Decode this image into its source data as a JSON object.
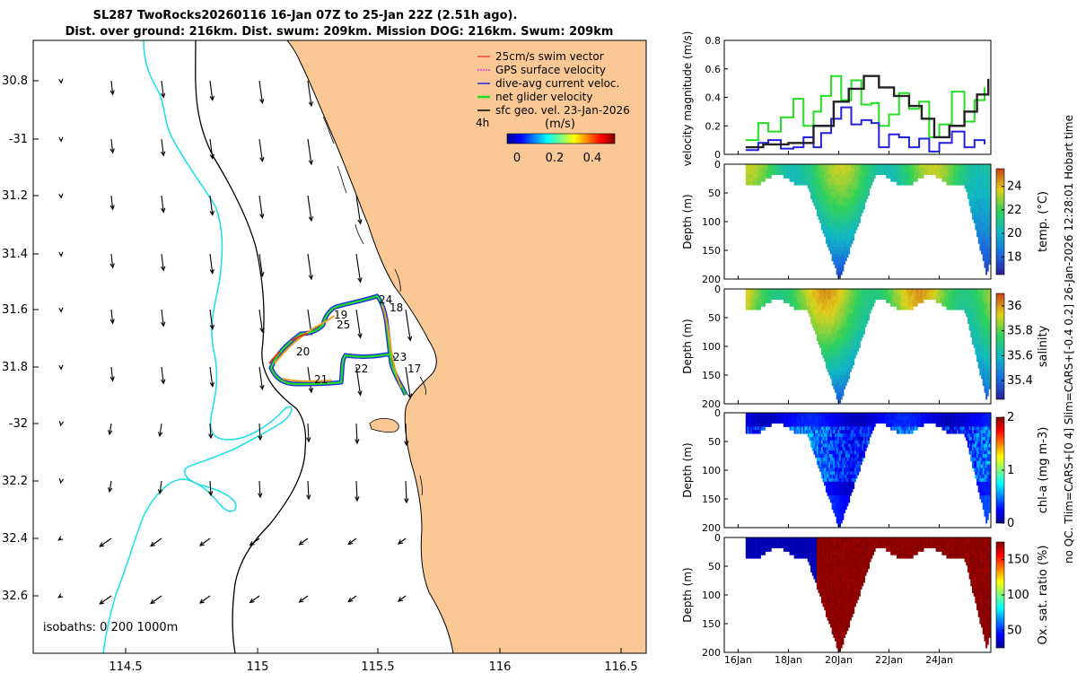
{
  "title_line1": "SL287 TwoRocks20260116 16-Jan 07Z to 25-Jan 22Z (2.51h ago).",
  "title_line2": "Dist. over ground: 216km. Dist. swum: 209km. Mission DOG: 216km. Swum: 209km",
  "side_note": "no QC. Tlim=CARS+[0 4] Slim=CARS+[-0.4 0.2] 26-Jan-2026 12:28:01 Hobart time",
  "map": {
    "lon_ticks": [
      "114.5",
      "115",
      "115.5",
      "116",
      "116.5"
    ],
    "lat_ticks": [
      "30.8",
      "-31",
      "31.2",
      "31.4",
      "31.6",
      "31.8",
      "-32",
      "32.2",
      "32.4",
      "32.6"
    ],
    "legend": [
      {
        "label": "25cm/s swim vector",
        "color": "#e0301e"
      },
      {
        "label": "GPS surface velocity",
        "color": "#e020e0"
      },
      {
        "label": "dive-avg current veloc.",
        "color": "#2222dd"
      },
      {
        "label": "net glider velocity",
        "color": "#22dd22"
      },
      {
        "label": "sfc geo. vel. 23-Jan-2026",
        "color": "#000000"
      }
    ],
    "interval_label": "4h",
    "colorbar_title": "(m/s)",
    "colorbar_ticks": [
      "0",
      "0.2",
      "0.4"
    ],
    "isobaths_label": "isobaths: 0   200  1000m",
    "day_labels": [
      "24",
      "18",
      "19",
      "25",
      "20",
      "23",
      "22",
      "21",
      "17"
    ],
    "land_color": "#f9c895",
    "coast_color": "#000000",
    "isobath_200_color": "#000000",
    "isobath_1000_color": "#22e0e8"
  },
  "chart_data": [
    {
      "type": "line",
      "title": "velocity magnitude",
      "ylabel": "velocity magnitude (m/s)",
      "ylim": [
        0,
        0.8
      ],
      "yticks": [
        "0",
        "0.2",
        "0.4",
        "0.6",
        "0.8"
      ],
      "x_unit": "days since 16-Jan 00Z",
      "series": [
        {
          "name": "net glider velocity",
          "color": "#22dd22",
          "x": [
            0.3,
            0.8,
            1.2,
            1.7,
            2.2,
            2.6,
            3.0,
            3.3,
            3.7,
            4.1,
            4.5,
            4.9,
            5.3,
            5.6,
            6.0,
            6.4,
            6.8,
            7.2,
            7.6,
            8.0,
            8.5,
            9.0,
            9.4,
            9.8
          ],
          "y": [
            0.1,
            0.22,
            0.16,
            0.26,
            0.39,
            0.2,
            0.3,
            0.41,
            0.55,
            0.38,
            0.52,
            0.35,
            0.36,
            0.2,
            0.28,
            0.43,
            0.32,
            0.37,
            0.12,
            0.21,
            0.44,
            0.23,
            0.38,
            0.47
          ]
        },
        {
          "name": "dive-avg current veloc.",
          "color": "#2222dd",
          "x": [
            0.3,
            0.8,
            1.2,
            1.7,
            2.2,
            2.6,
            3.0,
            3.3,
            3.7,
            4.1,
            4.5,
            4.9,
            5.3,
            5.6,
            6.0,
            6.4,
            6.8,
            7.2,
            7.6,
            8.0,
            8.5,
            9.0,
            9.4,
            9.8
          ],
          "y": [
            0.03,
            0.08,
            0.1,
            0.04,
            0.05,
            0.12,
            0.05,
            0.15,
            0.25,
            0.33,
            0.21,
            0.24,
            0.22,
            0.05,
            0.14,
            0.12,
            0.05,
            0.11,
            0.02,
            0.08,
            0.16,
            0.05,
            0.1,
            0.07
          ]
        },
        {
          "name": "sfc geo. vel. 23-Jan-2026",
          "color": "#222222",
          "x": [
            0.3,
            1.0,
            2.0,
            3.0,
            3.8,
            4.4,
            5.0,
            5.6,
            6.2,
            6.8,
            7.3,
            7.8,
            8.4,
            9.0,
            9.5,
            9.95
          ],
          "y": [
            0.05,
            0.07,
            0.08,
            0.2,
            0.37,
            0.46,
            0.55,
            0.47,
            0.41,
            0.34,
            0.25,
            0.12,
            0.2,
            0.3,
            0.42,
            0.53
          ]
        }
      ]
    },
    {
      "type": "heatmap",
      "variable": "temperature",
      "colorbar_label": "temp. (°C)",
      "colorbar_ticks": [
        "18",
        "20",
        "22",
        "24"
      ],
      "clim": [
        16.5,
        25.5
      ],
      "ylabel": "Depth (m)",
      "ylim": [
        200,
        0
      ],
      "yticks": [
        "0",
        "50",
        "100",
        "150",
        "200"
      ],
      "surface_value_range": [
        20.5,
        23.5
      ],
      "deep_value": 17.0
    },
    {
      "type": "heatmap",
      "variable": "salinity",
      "colorbar_label": "salinity",
      "colorbar_ticks": [
        "35.4",
        "35.6",
        "35.8",
        "36"
      ],
      "clim": [
        35.25,
        36.1
      ],
      "ylabel": "Depth (m)",
      "ylim": [
        200,
        0
      ],
      "yticks": [
        "0",
        "50",
        "100",
        "150",
        "200"
      ],
      "surface_value_range": [
        35.7,
        36.0
      ],
      "deep_value": 35.35
    },
    {
      "type": "heatmap",
      "variable": "chl-a",
      "colorbar_label": "chl-a (mg m-3)",
      "colorbar_ticks": [
        "0",
        "1",
        "2"
      ],
      "clim": [
        0,
        2
      ],
      "ylabel": "Depth (m)",
      "ylim": [
        200,
        0
      ],
      "yticks": [
        "0",
        "50",
        "100",
        "150",
        "200"
      ],
      "surface_value_range": [
        0.1,
        0.3
      ],
      "deep_value": 0.3
    },
    {
      "type": "heatmap",
      "variable": "oxygen saturation",
      "colorbar_label": "Ox. sat. ratio (%)",
      "colorbar_ticks": [
        "50",
        "100",
        "150"
      ],
      "clim": [
        25,
        175
      ],
      "ylabel": "Depth (m)",
      "ylim": [
        200,
        0
      ],
      "yticks": [
        "0",
        "50",
        "100",
        "150",
        "200"
      ],
      "surface_value_range": [
        30,
        175
      ],
      "deep_value": 175
    }
  ],
  "time_axis": {
    "start": "16-Jan 00Z",
    "range_days": [
      -0.55,
      10.05
    ],
    "ticks": [
      {
        "label": "16Jan",
        "day": 0
      },
      {
        "label": "18Jan",
        "day": 2
      },
      {
        "label": "20Jan",
        "day": 4
      },
      {
        "label": "22Jan",
        "day": 6
      },
      {
        "label": "24Jan",
        "day": 8
      }
    ]
  }
}
